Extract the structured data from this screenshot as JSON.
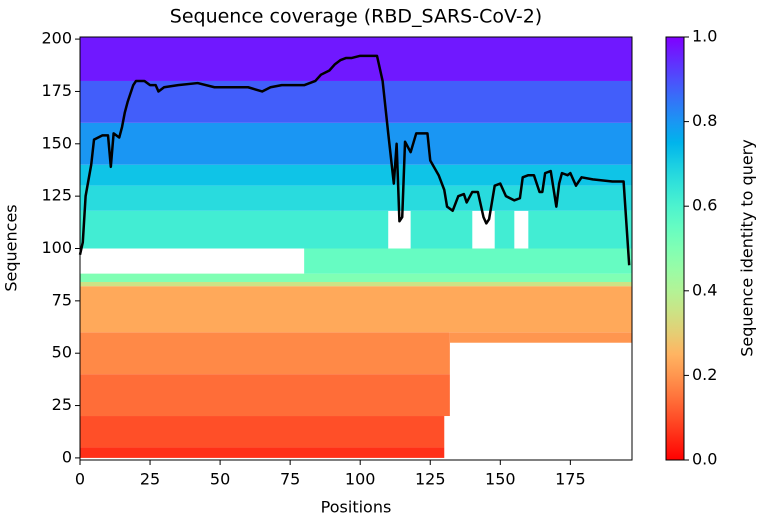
{
  "chart_data": {
    "type": "heatmap",
    "title": "Sequence coverage (RBD_SARS-CoV-2)",
    "x_label": "Positions",
    "y_label": "Sequences",
    "colorbar_label": "Sequence identity to query",
    "colormap": "rainbow_r",
    "xlim": [
      0,
      197
    ],
    "ylim": [
      -1,
      201
    ],
    "xticks": [
      0,
      25,
      50,
      75,
      100,
      125,
      150,
      175
    ],
    "yticks": [
      0,
      25,
      50,
      75,
      100,
      125,
      150,
      175,
      200
    ],
    "clim": [
      0,
      1
    ],
    "cticks": [
      {
        "value": 0,
        "label": "0.0"
      },
      {
        "value": 0.2,
        "label": "0.2"
      },
      {
        "value": 0.4,
        "label": "0.4"
      },
      {
        "value": 0.6,
        "label": "0.6"
      },
      {
        "value": 0.8,
        "label": "0.8"
      },
      {
        "value": 1,
        "label": "1.0"
      }
    ],
    "bands": [
      {
        "rows": [
          0,
          5
        ],
        "positions": [
          0,
          130
        ],
        "identity": 0.06
      },
      {
        "rows": [
          5,
          20
        ],
        "positions": [
          0,
          130
        ],
        "identity": 0.1
      },
      {
        "rows": [
          20,
          40
        ],
        "positions": [
          0,
          132
        ],
        "identity": 0.14
      },
      {
        "rows": [
          40,
          60
        ],
        "positions": [
          0,
          132
        ],
        "identity": 0.18
      },
      {
        "rows": [
          55,
          60
        ],
        "positions": [
          132,
          197
        ],
        "identity": 0.2
      },
      {
        "rows": [
          60,
          82
        ],
        "positions": [
          0,
          197
        ],
        "identity": 0.23
      },
      {
        "rows": [
          82,
          84
        ],
        "positions": [
          0,
          197
        ],
        "identity": 0.35
      },
      {
        "rows": [
          84,
          88
        ],
        "positions": [
          0,
          197
        ],
        "identity": 0.5
      },
      {
        "rows": [
          88,
          100
        ],
        "positions": [
          80,
          197
        ],
        "identity": 0.55
      },
      {
        "rows": [
          100,
          118
        ],
        "positions": [
          0,
          110
        ],
        "identity": 0.62
      },
      {
        "rows": [
          100,
          118
        ],
        "positions": [
          118,
          140
        ],
        "identity": 0.62
      },
      {
        "rows": [
          100,
          118
        ],
        "positions": [
          148,
          155
        ],
        "identity": 0.62
      },
      {
        "rows": [
          100,
          118
        ],
        "positions": [
          160,
          197
        ],
        "identity": 0.62
      },
      {
        "rows": [
          118,
          130
        ],
        "positions": [
          0,
          197
        ],
        "identity": 0.67
      },
      {
        "rows": [
          130,
          140
        ],
        "positions": [
          0,
          197
        ],
        "identity": 0.72
      },
      {
        "rows": [
          140,
          160
        ],
        "positions": [
          0,
          197
        ],
        "identity": 0.8
      },
      {
        "rows": [
          160,
          180
        ],
        "positions": [
          0,
          197
        ],
        "identity": 0.88
      },
      {
        "rows": [
          180,
          201
        ],
        "positions": [
          0,
          197
        ],
        "identity": 0.97
      }
    ],
    "coverage": {
      "color": "#000000",
      "x": [
        0,
        1,
        2,
        4,
        5,
        8,
        10,
        11,
        12,
        14,
        15,
        16,
        17,
        19,
        20,
        23,
        25,
        27,
        28,
        30,
        35,
        42,
        48,
        60,
        65,
        68,
        72,
        80,
        84,
        86,
        89,
        91,
        93,
        95,
        97,
        100,
        106,
        108,
        110,
        112,
        113,
        114,
        115,
        116,
        118,
        120,
        124,
        125,
        128,
        130,
        131,
        133,
        135,
        137,
        138,
        140,
        142,
        144,
        145,
        146,
        148,
        150,
        152,
        155,
        157,
        158,
        160,
        162,
        164,
        165,
        166,
        168,
        170,
        171,
        172,
        174,
        175,
        177,
        179,
        183,
        190,
        194,
        196
      ],
      "y": [
        97,
        103,
        125,
        140,
        152,
        154,
        154,
        139,
        155,
        153,
        158,
        165,
        170,
        178,
        180,
        180,
        178,
        178,
        175,
        177,
        178,
        179,
        177,
        177,
        175,
        177,
        178,
        178,
        180,
        183,
        185,
        188,
        190,
        191,
        191,
        192,
        192,
        180,
        155,
        131,
        150,
        113,
        115,
        151,
        146,
        155,
        155,
        142,
        135,
        128,
        120,
        118,
        125,
        126,
        122,
        127,
        127,
        115,
        112,
        114,
        130,
        131,
        125,
        123,
        124,
        134,
        135,
        135,
        127,
        127,
        136,
        137,
        120,
        131,
        136,
        135,
        136,
        130,
        134,
        133,
        132,
        132,
        92
      ]
    }
  }
}
